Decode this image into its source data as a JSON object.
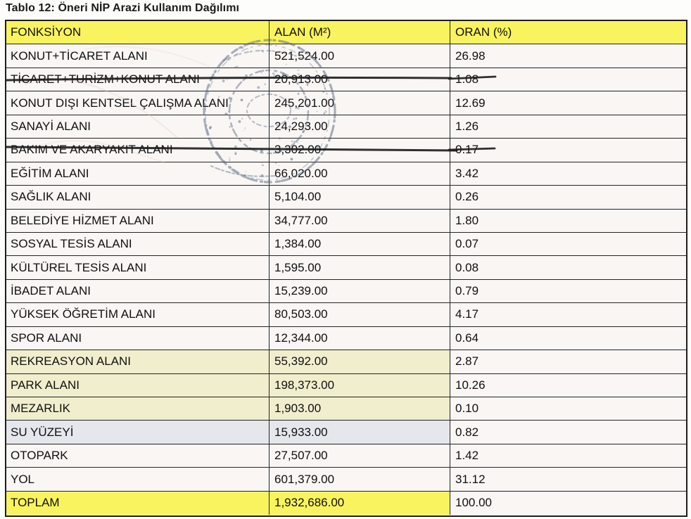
{
  "title": "Tablo 12: Öneri NİP Arazi Kullanım Dağılımı",
  "table": {
    "headers": [
      "FONKSİYON",
      "ALAN (M²)",
      "ORAN (%)"
    ],
    "rows": [
      {
        "fonksiyon": "KONUT+TİCARET ALANI",
        "alan": "521,524.00",
        "oran": "26.98",
        "style": "default",
        "struck": false
      },
      {
        "fonksiyon": "TİCARET+TURİZM+KONUT ALANI",
        "alan": "20,913.00",
        "oran": "1.08",
        "style": "default",
        "struck": true
      },
      {
        "fonksiyon": "KONUT DIŞI KENTSEL ÇALIŞMA ALANI",
        "alan": "245,201.00",
        "oran": "12.69",
        "style": "default",
        "struck": false
      },
      {
        "fonksiyon": "SANAYİ ALANI",
        "alan": "24,293.00",
        "oran": "1.26",
        "style": "default",
        "struck": false
      },
      {
        "fonksiyon": "BAKIM VE AKARYAKIT ALANI",
        "alan": "3,302.00",
        "oran": "0.17",
        "style": "default",
        "struck": true
      },
      {
        "fonksiyon": "EĞİTİM ALANI",
        "alan": "66,020.00",
        "oran": "3.42",
        "style": "default",
        "struck": false
      },
      {
        "fonksiyon": "SAĞLIK ALANI",
        "alan": "5,104.00",
        "oran": "0.26",
        "style": "default",
        "struck": false
      },
      {
        "fonksiyon": "BELEDİYE HİZMET ALANI",
        "alan": "34,777.00",
        "oran": "1.80",
        "style": "default",
        "struck": false
      },
      {
        "fonksiyon": "SOSYAL TESİS ALANI",
        "alan": "1,384.00",
        "oran": "0.07",
        "style": "default",
        "struck": false
      },
      {
        "fonksiyon": "KÜLTÜREL TESİS ALANI",
        "alan": "1,595.00",
        "oran": "0.08",
        "style": "default",
        "struck": false
      },
      {
        "fonksiyon": "İBADET ALANI",
        "alan": "15,239.00",
        "oran": "0.79",
        "style": "default",
        "struck": false
      },
      {
        "fonksiyon": "YÜKSEK ÖĞRETİM ALANI",
        "alan": "80,503.00",
        "oran": "4.17",
        "style": "default",
        "struck": false
      },
      {
        "fonksiyon": "SPOR ALANI",
        "alan": "12,344.00",
        "oran": "0.64",
        "style": "default",
        "struck": false
      },
      {
        "fonksiyon": "REKREASYON ALANI",
        "alan": "55,392.00",
        "oran": "2.87",
        "style": "pale",
        "struck": false
      },
      {
        "fonksiyon": "PARK ALANI",
        "alan": "198,373.00",
        "oran": "10.26",
        "style": "pale",
        "struck": false
      },
      {
        "fonksiyon": "MEZARLIK",
        "alan": "1,903.00",
        "oran": "0.10",
        "style": "pale",
        "struck": false
      },
      {
        "fonksiyon": "SU YÜZEYİ",
        "alan": "15,933.00",
        "oran": "0.82",
        "style": "blue",
        "struck": false
      },
      {
        "fonksiyon": "OTOPARK",
        "alan": "27,507.00",
        "oran": "1.42",
        "style": "default",
        "struck": false
      },
      {
        "fonksiyon": "YOL",
        "alan": "601,379.00",
        "oran": "31.12",
        "style": "default",
        "struck": false
      },
      {
        "fonksiyon": "TOPLAM",
        "alan": "1,932,686.00",
        "oran": "100.00",
        "style": "total",
        "struck": false
      }
    ]
  },
  "stamp": {
    "name": "official-round-stamp",
    "ink_color": "#53647c"
  },
  "colors": {
    "header_yellow": "#f9f35f",
    "pale_yellow_row": "#f0eecd",
    "light_blue_row": "#e5e7ed",
    "cell_background": "#f9f6f4",
    "border": "#242424",
    "strike_ink": "#1d1d1d"
  }
}
